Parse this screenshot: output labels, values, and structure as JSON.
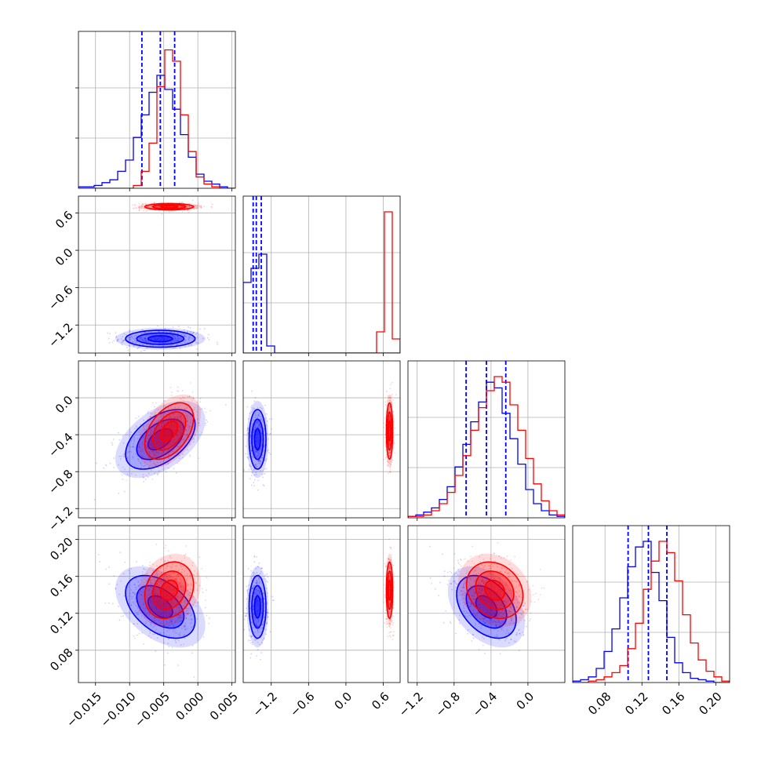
{
  "chart_data": {
    "type": "corner",
    "colors": {
      "series_a": "#0000ff",
      "series_b": "#ff0000"
    },
    "grid": true,
    "parameters": [
      {
        "range": [
          -0.0175,
          0.0055
        ],
        "ticks": [
          -0.015,
          -0.01,
          -0.005,
          0.0,
          0.005
        ],
        "tick_labels": [
          "−0.015",
          "−0.010",
          "−0.005",
          "0.000",
          "0.005"
        ]
      },
      {
        "range": [
          -1.65,
          0.87
        ],
        "ticks": [
          -1.2,
          -0.6,
          0.0,
          0.6
        ],
        "tick_labels": [
          "−1.2",
          "−0.6",
          "0.0",
          "0.6"
        ]
      },
      {
        "range": [
          -1.3,
          0.4
        ],
        "ticks": [
          -1.2,
          -0.8,
          -0.4,
          0.0
        ],
        "tick_labels": [
          "−1.2",
          "−0.8",
          "−0.4",
          "0.0"
        ]
      },
      {
        "range": [
          0.045,
          0.215
        ],
        "ticks": [
          0.08,
          0.12,
          0.16,
          0.2
        ],
        "tick_labels": [
          "0.08",
          "0.12",
          "0.16",
          "0.20"
        ]
      }
    ],
    "series": [
      {
        "color": "#0000ff",
        "means": [
          -0.0055,
          -1.42,
          -0.45,
          0.127
        ],
        "sds": [
          0.003,
          0.08,
          0.19,
          0.02
        ],
        "quantiles": [
          [
            -0.0082,
            -0.0055,
            -0.0034
          ],
          [
            -1.49,
            -1.44,
            -1.36
          ],
          [
            -0.67,
            -0.45,
            -0.24
          ],
          [
            0.105,
            0.127,
            0.147
          ]
        ],
        "hist": [
          [
            0.01,
            0.01,
            0.02,
            0.04,
            0.06,
            0.12,
            0.2,
            0.36,
            0.52,
            0.68,
            0.8,
            0.7,
            0.56,
            0.38,
            0.22,
            0.1,
            0.05,
            0.03,
            0.01,
            0.0
          ],
          [
            0.5,
            0.6,
            0.7,
            0.05,
            0.0,
            0.0,
            0.0,
            0.0,
            0.0,
            0.0,
            0.0,
            0.0,
            0.0,
            0.0,
            0.0,
            0.0,
            0.0,
            0.0,
            0.0,
            0.0
          ],
          [
            0.01,
            0.02,
            0.04,
            0.07,
            0.13,
            0.22,
            0.36,
            0.52,
            0.68,
            0.82,
            0.96,
            0.92,
            0.74,
            0.56,
            0.38,
            0.2,
            0.1,
            0.05,
            0.02,
            0.01
          ],
          [
            0.01,
            0.02,
            0.04,
            0.1,
            0.22,
            0.38,
            0.6,
            0.82,
            0.96,
            1.0,
            0.78,
            0.58,
            0.32,
            0.14,
            0.07,
            0.03,
            0.02,
            0.01,
            0.0,
            0.0
          ]
        ],
        "hist_range": [
          [
            -0.0175,
            0.0055
          ],
          [
            -1.65,
            0.87
          ],
          [
            -1.3,
            0.4
          ],
          [
            0.045,
            0.215
          ]
        ]
      },
      {
        "color": "#ff0000",
        "means": [
          -0.0042,
          0.7,
          -0.36,
          0.145
        ],
        "sds": [
          0.0021,
          0.03,
          0.18,
          0.018
        ],
        "quantiles": [],
        "hist": [
          [
            0.0,
            0.0,
            0.0,
            0.0,
            0.0,
            0.0,
            0.0,
            0.02,
            0.12,
            0.32,
            0.72,
            0.98,
            0.9,
            0.52,
            0.26,
            0.08,
            0.03,
            0.01,
            0.0,
            0.0
          ],
          [
            0.0,
            0.0,
            0.0,
            0.0,
            0.0,
            0.0,
            0.0,
            0.0,
            0.0,
            0.0,
            0.0,
            0.0,
            0.0,
            0.0,
            0.0,
            0.0,
            0.0,
            0.15,
            1.0,
            0.1
          ],
          [
            0.01,
            0.01,
            0.02,
            0.05,
            0.1,
            0.18,
            0.3,
            0.44,
            0.62,
            0.78,
            0.9,
            1.0,
            0.96,
            0.8,
            0.62,
            0.42,
            0.24,
            0.12,
            0.05,
            0.02
          ],
          [
            0.0,
            0.0,
            0.01,
            0.02,
            0.04,
            0.07,
            0.12,
            0.24,
            0.42,
            0.66,
            0.86,
            1.0,
            0.92,
            0.72,
            0.48,
            0.28,
            0.16,
            0.08,
            0.04,
            0.01
          ]
        ],
        "hist_range": [
          [
            -0.0175,
            0.0055
          ],
          [
            -1.65,
            0.87
          ],
          [
            -1.3,
            0.4
          ],
          [
            0.045,
            0.215
          ]
        ]
      }
    ],
    "correlations": {
      "series_a": {
        "0-2": 0.5,
        "0-3": -0.45,
        "2-3": -0.4,
        "0-1": 0.0,
        "1-2": 0.0,
        "1-3": 0.0
      },
      "series_b": {
        "0-2": 0.45,
        "0-3": 0.2,
        "2-3": -0.2,
        "0-1": 0.0,
        "1-2": 0.0,
        "1-3": 0.0
      }
    }
  }
}
